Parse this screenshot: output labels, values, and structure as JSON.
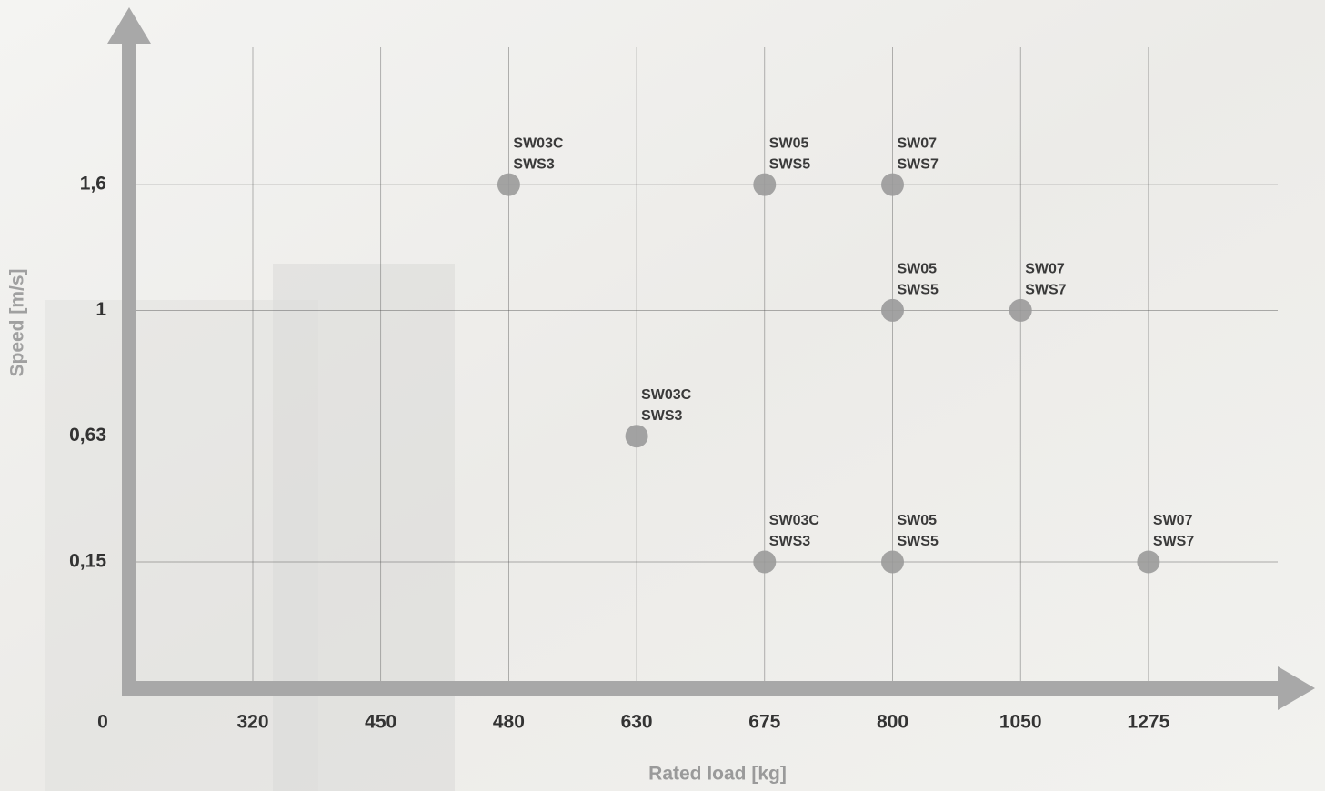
{
  "chart_data": {
    "type": "scatter",
    "x_label": "Rated load [kg]",
    "y_label": "Speed [m/s]",
    "xticks": [
      0,
      320,
      450,
      480,
      630,
      675,
      800,
      1050,
      1275
    ],
    "yticks": [
      {
        "value": 0.15,
        "label": "0,15"
      },
      {
        "value": 0.63,
        "label": "0,63"
      },
      {
        "value": 1,
        "label": "1"
      },
      {
        "value": 1.6,
        "label": "1,6"
      }
    ],
    "grid": true,
    "color": "#9a9a9a",
    "x": [
      480,
      675,
      800,
      800,
      1050,
      630,
      675,
      800,
      1275
    ],
    "values": [
      1.6,
      1.6,
      1.6,
      1,
      1,
      0.63,
      0.15,
      0.15,
      0.15
    ],
    "point_labels": [
      [
        "SW03C",
        "SWS3"
      ],
      [
        "SW05",
        "SWS5"
      ],
      [
        "SW07",
        "SWS7"
      ],
      [
        "SW05",
        "SWS5"
      ],
      [
        "SW07",
        "SWS7"
      ],
      [
        "SW03C",
        "SWS3"
      ],
      [
        "SW03C",
        "SWS3"
      ],
      [
        "SW05",
        "SWS5"
      ],
      [
        "SW07",
        "SWS7"
      ]
    ]
  }
}
